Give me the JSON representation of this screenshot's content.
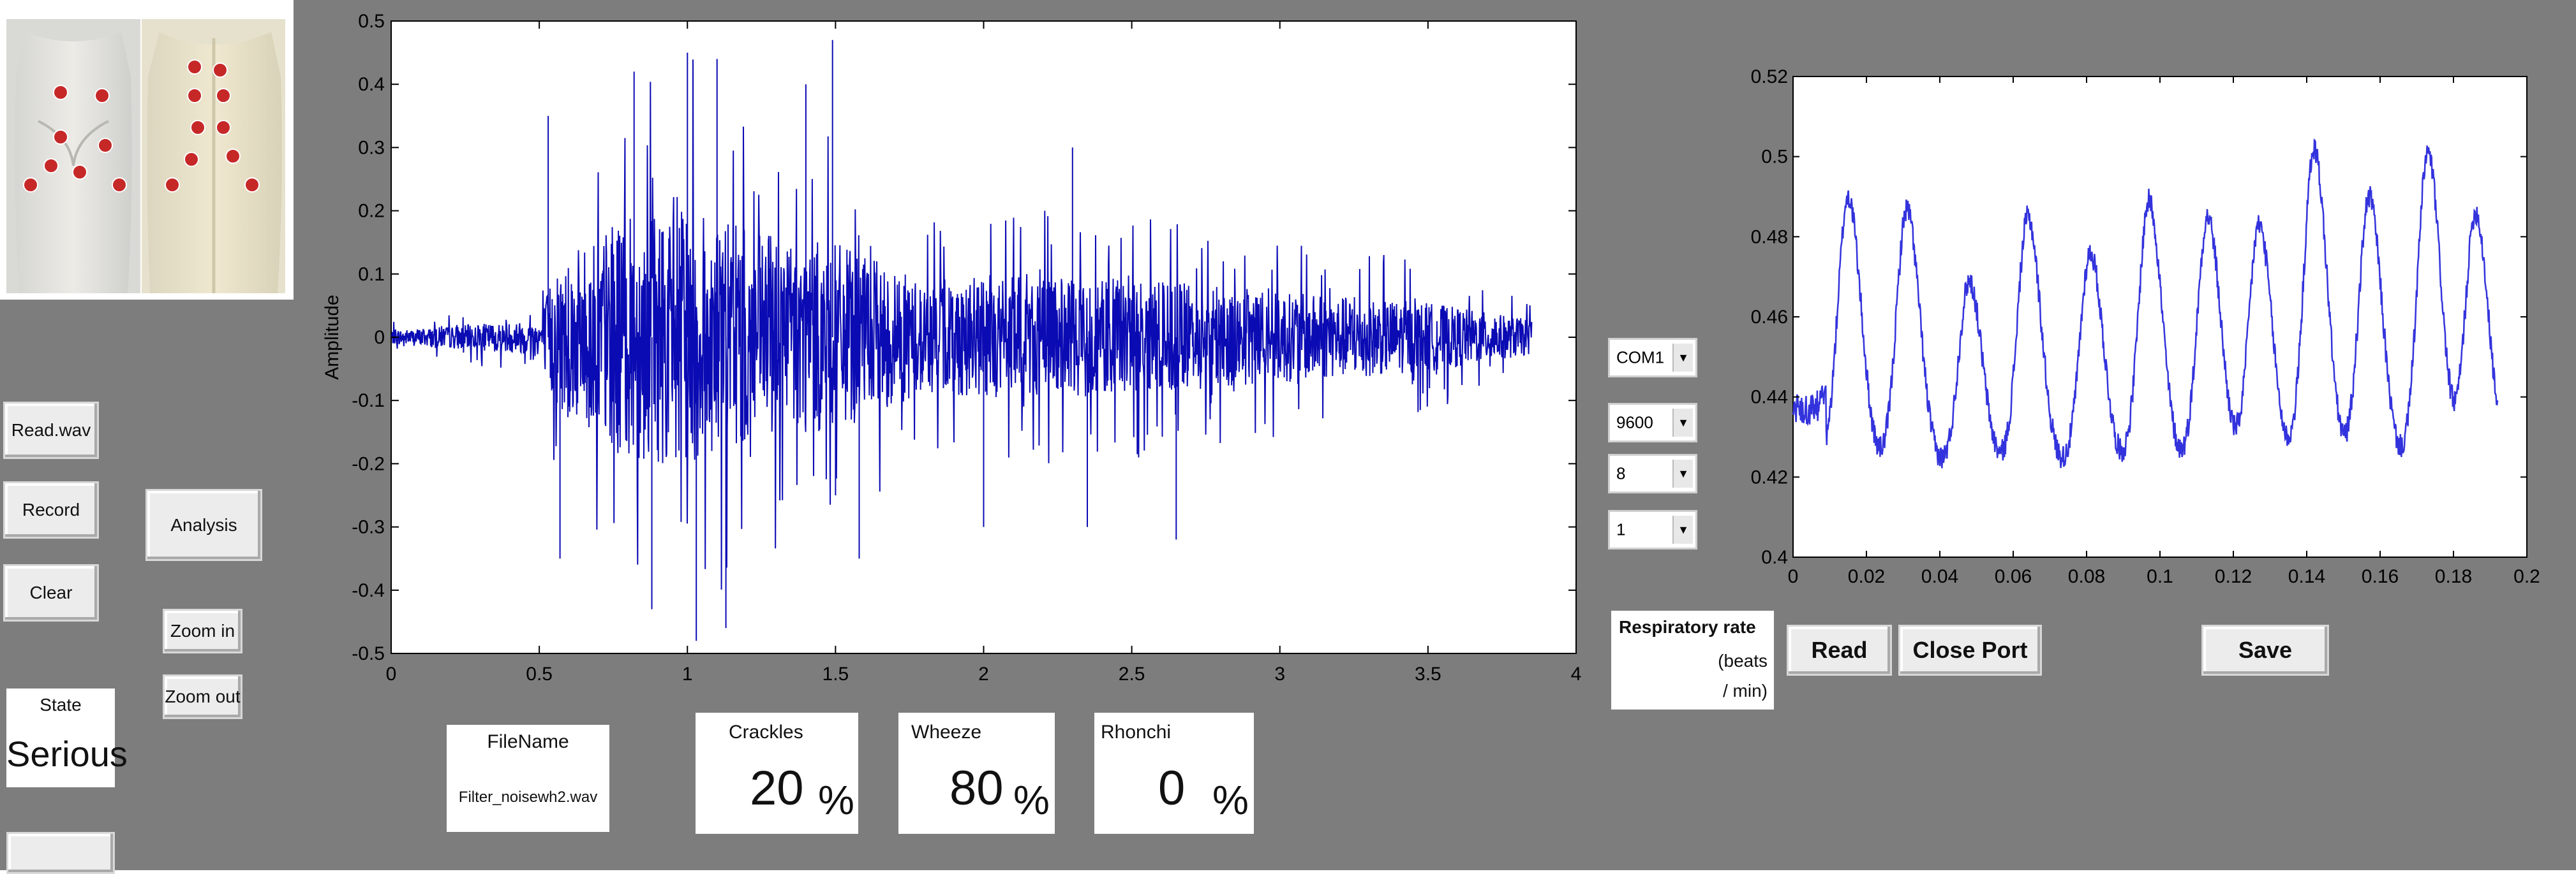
{
  "left_controls": {
    "read_wav": "Read.wav",
    "record": "Record",
    "clear": "Clear",
    "analysis": "Analysis",
    "zoom_in": "Zoom in",
    "zoom_out": "Zoom out",
    "state_label": "State",
    "state_value": "Serious"
  },
  "file": {
    "label": "FileName",
    "value": "Filter_noisewh2.wav"
  },
  "results": {
    "crackles": {
      "label": "Crackles",
      "value": "20",
      "unit": "%"
    },
    "wheeze": {
      "label": "Wheeze",
      "value": "80",
      "unit": "%"
    },
    "rhonchi": {
      "label": "Rhonchi",
      "value": "0",
      "unit": "%"
    }
  },
  "serial": {
    "port": "COM1",
    "baud": "9600",
    "data_bits": "8",
    "stop_bits": "1"
  },
  "respiratory": {
    "label": "Respiratory rate",
    "unit_line1": "(beats",
    "unit_line2": "/ min)"
  },
  "buttons_right": {
    "read": "Read",
    "close_port": "Close Port",
    "save": "Save"
  },
  "icons": {
    "dropdown": "chevron-down-icon",
    "body_image": "chest-auscultation-diagram"
  },
  "chart_data": [
    {
      "type": "line",
      "title": "",
      "xlabel": "",
      "ylabel": "Amplitude",
      "xlim": [
        0,
        4
      ],
      "ylim": [
        -0.5,
        0.5
      ],
      "xticks": [
        "0",
        "0.5",
        "1",
        "1.5",
        "2",
        "2.5",
        "3",
        "3.5",
        "4"
      ],
      "yticks": [
        "0.5",
        "0.4",
        "0.3",
        "0.2",
        "0.1",
        "0",
        "-0.1",
        "-0.2",
        "-0.3",
        "-0.4",
        "-0.5"
      ],
      "signal_duration": 3.85,
      "envelope": {
        "x": [
          0,
          0.5,
          0.55,
          0.75,
          1.0,
          1.2,
          1.5,
          1.8,
          2.0,
          2.2,
          2.5,
          3.0,
          3.5,
          3.85
        ],
        "amp": [
          0.02,
          0.05,
          0.2,
          0.33,
          0.38,
          0.3,
          0.27,
          0.16,
          0.18,
          0.17,
          0.17,
          0.13,
          0.1,
          0.05
        ]
      },
      "peaks": [
        {
          "x": 0.53,
          "y": 0.35
        },
        {
          "x": 0.57,
          "y": -0.35
        },
        {
          "x": 0.82,
          "y": 0.42
        },
        {
          "x": 0.88,
          "y": -0.43
        },
        {
          "x": 1.0,
          "y": 0.45
        },
        {
          "x": 1.03,
          "y": -0.48
        },
        {
          "x": 1.1,
          "y": 0.44
        },
        {
          "x": 1.13,
          "y": -0.46
        },
        {
          "x": 1.4,
          "y": 0.4
        },
        {
          "x": 1.49,
          "y": 0.47
        },
        {
          "x": 1.5,
          "y": -0.25
        },
        {
          "x": 1.58,
          "y": -0.35
        },
        {
          "x": 2.0,
          "y": -0.3
        },
        {
          "x": 2.3,
          "y": 0.3
        },
        {
          "x": 2.35,
          "y": -0.3
        },
        {
          "x": 2.65,
          "y": -0.32
        }
      ],
      "color": "#0b0bb4"
    },
    {
      "type": "line",
      "title": "",
      "xlabel": "",
      "ylabel": "",
      "xlim": [
        0,
        0.2
      ],
      "ylim": [
        0.4,
        0.52
      ],
      "xticks": [
        "0",
        "0.02",
        "0.04",
        "0.06",
        "0.08",
        "0.1",
        "0.12",
        "0.14",
        "0.16",
        "0.18",
        "0.2"
      ],
      "yticks": [
        "0.52",
        "0.5",
        "0.48",
        "0.46",
        "0.44",
        "0.42",
        "0.4"
      ],
      "baseline": 0.422,
      "start_level": 0.437,
      "end_x": 0.192,
      "pulse_peaks": [
        {
          "x": 0.015,
          "y": 0.49
        },
        {
          "x": 0.031,
          "y": 0.487
        },
        {
          "x": 0.048,
          "y": 0.469
        },
        {
          "x": 0.064,
          "y": 0.485
        },
        {
          "x": 0.081,
          "y": 0.476
        },
        {
          "x": 0.097,
          "y": 0.489
        },
        {
          "x": 0.113,
          "y": 0.485
        },
        {
          "x": 0.127,
          "y": 0.483
        },
        {
          "x": 0.142,
          "y": 0.502
        },
        {
          "x": 0.157,
          "y": 0.49
        },
        {
          "x": 0.173,
          "y": 0.501
        },
        {
          "x": 0.186,
          "y": 0.486
        }
      ],
      "color": "#3333dd"
    }
  ]
}
